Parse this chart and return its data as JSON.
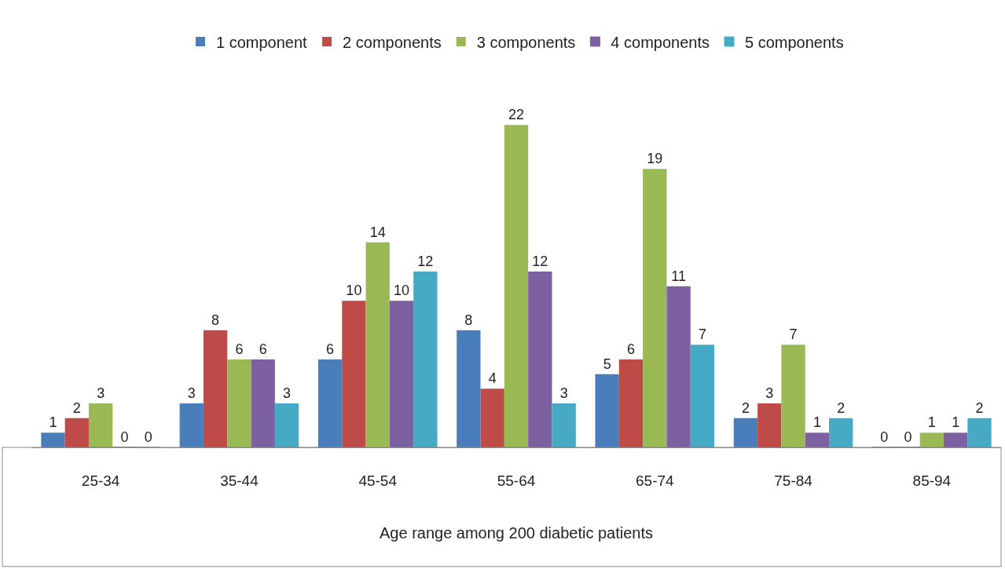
{
  "chart_data": {
    "type": "bar",
    "xlabel": "Age range among 200 diabetic patients",
    "categories": [
      "25-34",
      "35-44",
      "45-54",
      "55-64",
      "65-74",
      "75-84",
      "85-94"
    ],
    "series": [
      {
        "name": "1 component",
        "color": "#4a7ebb",
        "values": [
          1,
          3,
          6,
          8,
          5,
          2,
          0
        ]
      },
      {
        "name": "2 components",
        "color": "#be4b48",
        "values": [
          2,
          8,
          10,
          4,
          6,
          3,
          0
        ]
      },
      {
        "name": "3 components",
        "color": "#98b954",
        "values": [
          3,
          6,
          14,
          22,
          19,
          7,
          1
        ]
      },
      {
        "name": "4 components",
        "color": "#7d60a0",
        "values": [
          0,
          6,
          10,
          12,
          11,
          1,
          1
        ]
      },
      {
        "name": "5 components",
        "color": "#46aac5",
        "values": [
          0,
          3,
          12,
          3,
          7,
          2,
          2
        ]
      }
    ],
    "data_labels": true,
    "legend": "top"
  }
}
